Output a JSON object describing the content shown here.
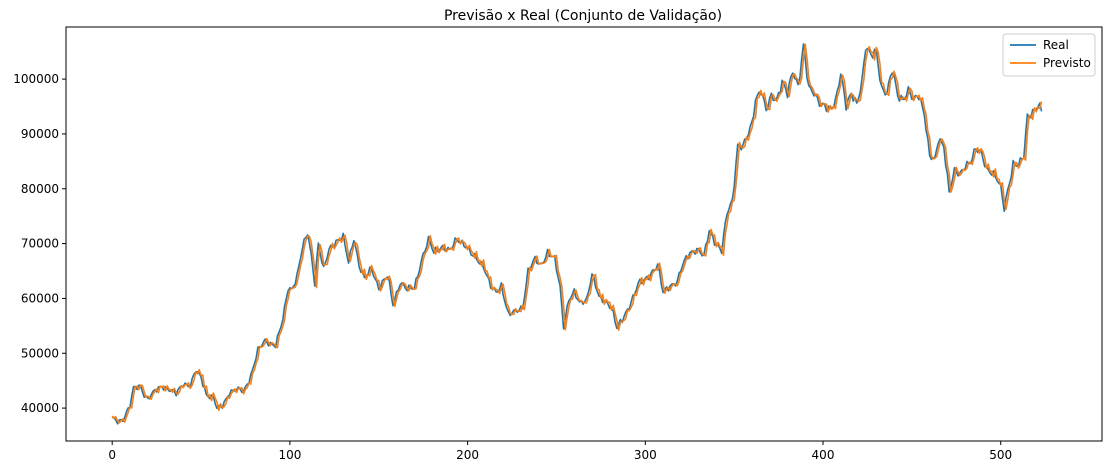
{
  "chart_data": {
    "type": "line",
    "title": "Previsão x Real (Conjunto de Validação)",
    "xlabel": "",
    "ylabel": "",
    "xlim": [
      -26,
      557
    ],
    "ylim": [
      34000,
      109500
    ],
    "xticks": [
      0,
      100,
      200,
      300,
      400,
      500
    ],
    "yticks": [
      40000,
      50000,
      60000,
      70000,
      80000,
      90000,
      100000
    ],
    "grid": false,
    "legend": "top-right",
    "anchors": [
      [
        0,
        38000
      ],
      [
        3,
        37500
      ],
      [
        6,
        38000
      ],
      [
        10,
        40500
      ],
      [
        12,
        43500
      ],
      [
        16,
        44000
      ],
      [
        18,
        42500
      ],
      [
        20,
        41800
      ],
      [
        24,
        43000
      ],
      [
        28,
        44000
      ],
      [
        32,
        43500
      ],
      [
        36,
        42500
      ],
      [
        40,
        44500
      ],
      [
        44,
        44200
      ],
      [
        47,
        46800
      ],
      [
        50,
        45500
      ],
      [
        53,
        42500
      ],
      [
        57,
        42000
      ],
      [
        59,
        39800
      ],
      [
        62,
        40300
      ],
      [
        66,
        43000
      ],
      [
        70,
        43400
      ],
      [
        74,
        43000
      ],
      [
        78,
        46000
      ],
      [
        82,
        50500
      ],
      [
        86,
        52200
      ],
      [
        88,
        52000
      ],
      [
        92,
        51500
      ],
      [
        96,
        56000
      ],
      [
        99,
        62000
      ],
      [
        101,
        61800
      ],
      [
        104,
        64000
      ],
      [
        107,
        69000
      ],
      [
        110,
        72000
      ],
      [
        112,
        68000
      ],
      [
        114,
        63000
      ],
      [
        116,
        70000
      ],
      [
        119,
        65000
      ],
      [
        122,
        69000
      ],
      [
        126,
        70500
      ],
      [
        130,
        71000
      ],
      [
        133,
        66500
      ],
      [
        136,
        71200
      ],
      [
        139,
        66000
      ],
      [
        142,
        63500
      ],
      [
        146,
        65500
      ],
      [
        150,
        62000
      ],
      [
        155,
        64000
      ],
      [
        158,
        59000
      ],
      [
        162,
        63000
      ],
      [
        166,
        61500
      ],
      [
        170,
        62000
      ],
      [
        174,
        67000
      ],
      [
        178,
        70500
      ],
      [
        181,
        68500
      ],
      [
        185,
        69500
      ],
      [
        190,
        68500
      ],
      [
        194,
        71000
      ],
      [
        198,
        70000
      ],
      [
        202,
        68000
      ],
      [
        206,
        67000
      ],
      [
        209,
        66000
      ],
      [
        213,
        62000
      ],
      [
        216,
        61000
      ],
      [
        219,
        62500
      ],
      [
        223,
        57000
      ],
      [
        227,
        57500
      ],
      [
        231,
        58500
      ],
      [
        234,
        65000
      ],
      [
        238,
        67000
      ],
      [
        241,
        66000
      ],
      [
        245,
        68500
      ],
      [
        249,
        67000
      ],
      [
        252,
        62000
      ],
      [
        254,
        55000
      ],
      [
        257,
        60000
      ],
      [
        260,
        61000
      ],
      [
        263,
        59000
      ],
      [
        267,
        60000
      ],
      [
        270,
        64500
      ],
      [
        274,
        60000
      ],
      [
        278,
        59500
      ],
      [
        281,
        58500
      ],
      [
        284,
        54500
      ],
      [
        287,
        56000
      ],
      [
        292,
        59500
      ],
      [
        296,
        62500
      ],
      [
        300,
        63500
      ],
      [
        304,
        65000
      ],
      [
        307,
        66000
      ],
      [
        310,
        61000
      ],
      [
        314,
        62500
      ],
      [
        318,
        63000
      ],
      [
        321,
        66000
      ],
      [
        325,
        68500
      ],
      [
        329,
        69000
      ],
      [
        333,
        67500
      ],
      [
        336,
        72500
      ],
      [
        340,
        70000
      ],
      [
        343,
        68500
      ],
      [
        346,
        75500
      ],
      [
        349,
        78000
      ],
      [
        352,
        88000
      ],
      [
        355,
        87500
      ],
      [
        358,
        90000
      ],
      [
        360,
        92000
      ],
      [
        362,
        96500
      ],
      [
        365,
        98000
      ],
      [
        368,
        94000
      ],
      [
        371,
        97000
      ],
      [
        374,
        96500
      ],
      [
        377,
        99500
      ],
      [
        380,
        97000
      ],
      [
        383,
        101500
      ],
      [
        386,
        99000
      ],
      [
        389,
        106000
      ],
      [
        392,
        98000
      ],
      [
        395,
        97500
      ],
      [
        398,
        96000
      ],
      [
        401,
        95000
      ],
      [
        404,
        94000
      ],
      [
        407,
        96000
      ],
      [
        410,
        101500
      ],
      [
        413,
        95000
      ],
      [
        416,
        97000
      ],
      [
        419,
        95500
      ],
      [
        422,
        100000
      ],
      [
        424,
        106000
      ],
      [
        427,
        104000
      ],
      [
        430,
        105000
      ],
      [
        433,
        98500
      ],
      [
        436,
        97500
      ],
      [
        439,
        101500
      ],
      [
        442,
        97000
      ],
      [
        445,
        96500
      ],
      [
        448,
        98000
      ],
      [
        451,
        96000
      ],
      [
        454,
        97000
      ],
      [
        457,
        94000
      ],
      [
        460,
        86000
      ],
      [
        463,
        85000
      ],
      [
        465,
        89000
      ],
      [
        468,
        88000
      ],
      [
        471,
        79500
      ],
      [
        474,
        83000
      ],
      [
        477,
        82500
      ],
      [
        480,
        84500
      ],
      [
        483,
        85000
      ],
      [
        486,
        87000
      ],
      [
        489,
        86500
      ],
      [
        492,
        84000
      ],
      [
        495,
        83000
      ],
      [
        498,
        81500
      ],
      [
        500,
        80000
      ],
      [
        502,
        76500
      ],
      [
        504,
        80000
      ],
      [
        507,
        84500
      ],
      [
        510,
        84000
      ],
      [
        513,
        86000
      ],
      [
        515,
        93500
      ],
      [
        518,
        94000
      ],
      [
        521,
        95000
      ],
      [
        523,
        94000
      ]
    ],
    "series": [
      {
        "name": "Real",
        "color": "#1f77b4",
        "lag": 0
      },
      {
        "name": "Previsto",
        "color": "#ff7f0e",
        "lag": 1
      }
    ]
  }
}
